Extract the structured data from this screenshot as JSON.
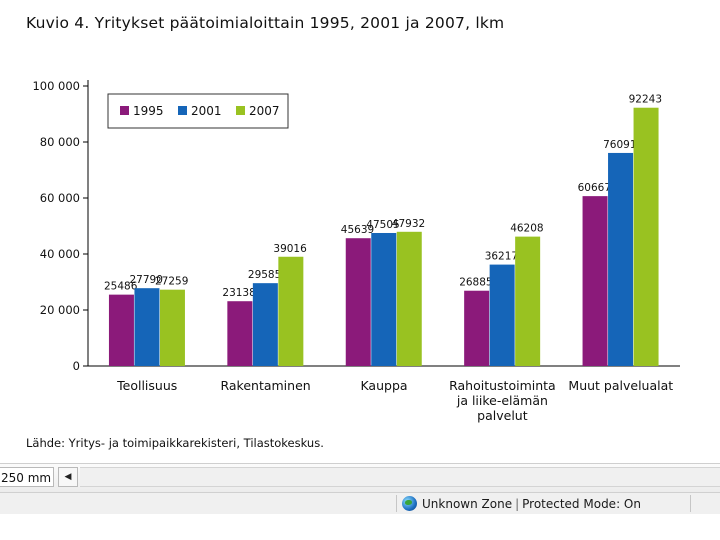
{
  "title": "Kuvio 4. Yritykset päätoimialoittain 1995, 2001 ja 2007, lkm",
  "source": "Lähde: Yritys- ja toimipaikkarekisteri, Tilastokeskus.",
  "chart_data": {
    "type": "bar",
    "title": "Kuvio 4. Yritykset päätoimialoittain 1995, 2001 ja 2007, lkm",
    "xlabel": "",
    "ylabel": "",
    "ylim": [
      0,
      100000
    ],
    "grid": false,
    "legend_position": "top-left",
    "y_ticks": [
      0,
      20000,
      40000,
      60000,
      80000,
      100000
    ],
    "y_tick_labels": [
      "0",
      "20 000",
      "40 000",
      "60 000",
      "80 000",
      "100 000"
    ],
    "categories": [
      [
        "Teollisuus"
      ],
      [
        "Rakentaminen"
      ],
      [
        "Kauppa"
      ],
      [
        "Rahoitustoiminta",
        "ja liike-elämän",
        "palvelut"
      ],
      [
        "Muut palvelualat"
      ]
    ],
    "series": [
      {
        "name": "1995",
        "color": "#8b1a7a",
        "values": [
          25486,
          23138,
          45639,
          26885,
          60667
        ]
      },
      {
        "name": "2001",
        "color": "#1565b8",
        "values": [
          27790,
          29585,
          47505,
          36217,
          76091
        ]
      },
      {
        "name": "2007",
        "color": "#99c221",
        "values": [
          27259,
          39016,
          47932,
          46208,
          92243
        ]
      }
    ]
  },
  "statusbar": {
    "zoom": "250 mm",
    "scroll_left_icon": "scroll-left-arrow",
    "zone_icon": "globe-icon",
    "zone_label": "Unknown Zone",
    "separator": "|",
    "protected_mode": "Protected Mode: On"
  }
}
